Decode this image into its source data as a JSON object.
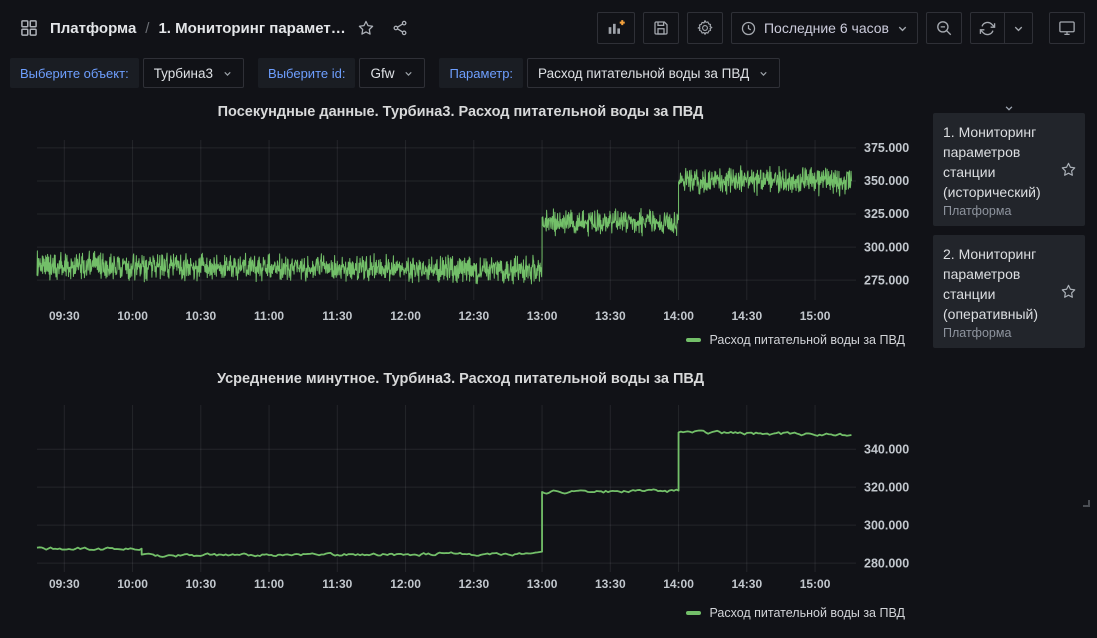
{
  "header": {
    "breadcrumb_root": "Платформа",
    "breadcrumb_separator": "/",
    "breadcrumb_current": "1. Мониторинг парамет…",
    "time_range_label": "Последние 6 часов"
  },
  "variables": [
    {
      "label": "Выберите объект:",
      "value": "Турбина3"
    },
    {
      "label": "Выберите id:",
      "value": "Gfw"
    },
    {
      "label": "Параметр:",
      "value": "Расход питательной воды за ПВД"
    }
  ],
  "side_list": [
    {
      "title": "1. Мониторинг параметров станции (исторический)",
      "folder": "Платформа"
    },
    {
      "title": "2. Мониторинг параметров станции (оперативный)",
      "folder": "Платформа"
    }
  ],
  "colors": {
    "series_green": "#73bf69",
    "label_blue": "#6e9fff",
    "accent_orange": "#f5a13c",
    "grid": "rgba(204,204,220,0.10)",
    "tick_text": "#c2c7cd"
  },
  "chart_data": [
    {
      "type": "line",
      "title": "Посекундные данные. Турбина3. Расход питательной воды за ПВД",
      "legend": "Расход питательной воды за ПВД",
      "x_ticks": [
        "09:30",
        "10:00",
        "10:30",
        "11:00",
        "11:30",
        "12:00",
        "12:30",
        "13:00",
        "13:30",
        "14:00",
        "14:30",
        "15:00"
      ],
      "tick_start_minute": 570,
      "tick_step_minutes": 30,
      "x_range_minutes": [
        558,
        918
      ],
      "data_end_minute": 916,
      "y_ticks": [
        275,
        300,
        325,
        350,
        375
      ],
      "y_tick_labels": [
        "275.000",
        "300.000",
        "325.000",
        "350.000",
        "375.000"
      ],
      "ylim": [
        260,
        381
      ],
      "grid": true,
      "legend_position": "bottom-right",
      "points_per_minute": 6,
      "line_width": 1,
      "segments": [
        {
          "from_min": 558,
          "to_min": 780,
          "mean": 286,
          "mean_end": 283,
          "noise": 12
        },
        {
          "from_min": 780,
          "to_min": 840,
          "mean": 318,
          "mean_end": 319,
          "noise": 11
        },
        {
          "from_min": 840,
          "to_min": 916,
          "mean": 350,
          "mean_end": 350,
          "noise": 12
        }
      ]
    },
    {
      "type": "line",
      "title": "Усреднение минутное. Турбина3. Расход питательной воды за ПВД",
      "legend": "Расход питательной воды за ПВД",
      "x_ticks": [
        "09:30",
        "10:00",
        "10:30",
        "11:00",
        "11:30",
        "12:00",
        "12:30",
        "13:00",
        "13:30",
        "14:00",
        "14:30",
        "15:00"
      ],
      "tick_start_minute": 570,
      "tick_step_minutes": 30,
      "x_range_minutes": [
        558,
        918
      ],
      "data_end_minute": 916,
      "y_ticks": [
        280,
        300,
        320,
        340
      ],
      "y_tick_labels": [
        "280.000",
        "300.000",
        "320.000",
        "340.000"
      ],
      "ylim": [
        275.3,
        363.3
      ],
      "grid": true,
      "legend_position": "bottom-right",
      "points_per_minute": 1,
      "line_width": 1.8,
      "segments": [
        {
          "from_min": 558,
          "to_min": 604,
          "mean": 287.5,
          "mean_end": 287.5,
          "noise": 0.9
        },
        {
          "from_min": 604,
          "to_min": 780,
          "mean": 284,
          "mean_end": 285,
          "noise": 0.9
        },
        {
          "from_min": 780,
          "to_min": 840,
          "mean": 317.5,
          "mean_end": 318,
          "noise": 0.9
        },
        {
          "from_min": 840,
          "to_min": 916,
          "mean": 349,
          "mean_end": 347.5,
          "noise": 0.9
        }
      ]
    }
  ]
}
